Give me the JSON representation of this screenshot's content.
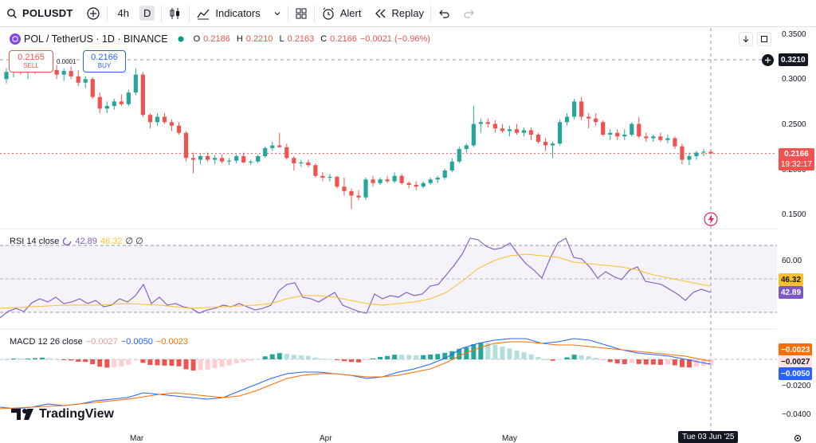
{
  "toolbar": {
    "symbol": "POLUSDT",
    "interval": "4h",
    "interval_active": "D",
    "indicators_label": "Indicators",
    "alert_label": "Alert",
    "replay_label": "Replay"
  },
  "legend": {
    "pair": "POL / TetherUS · 1D · BINANCE",
    "open_label": "O",
    "open": "0.2186",
    "high_label": "H",
    "high": "0.2210",
    "low_label": "L",
    "low": "0.2163",
    "close_label": "C",
    "close": "0.2166",
    "change": "−0.0021 (−0.96%)"
  },
  "trade": {
    "sell_price": "0.2165",
    "sell_label": "SELL",
    "spread": "0.0001",
    "buy_price": "0.2166",
    "buy_label": "BUY"
  },
  "price_axis": {
    "labels": [
      "0.3500",
      "0.3000",
      "0.2500",
      "0.2000",
      "0.1500"
    ],
    "crosshair_value": "0.3210",
    "last_price": "0.2166",
    "countdown": "19:32:17"
  },
  "rsi": {
    "title": "RSI 14 close",
    "value": "42.89",
    "ma": "46.32",
    "extra": "∅ ∅",
    "axis_label": "60.00",
    "ma_tag": "46.32",
    "value_tag": "42.89"
  },
  "macd": {
    "title": "MACD 12 26 close",
    "hist": "−0.0027",
    "macd": "−0.0050",
    "signal": "−0.0023",
    "axis_labels": [
      "−0.0200",
      "−0.0400"
    ],
    "tag_signal": "−0.0023",
    "tag_hist": "−0.0027",
    "tag_macd": "−0.0050"
  },
  "time_axis": {
    "labels": [
      "Mar",
      "Apr",
      "May"
    ],
    "crosshair_date": "Tue 03 Jun '25"
  },
  "watermark": "TradingView",
  "colors": {
    "up": "#26a69a",
    "down": "#ef5350",
    "rsi_line": "#7e57c2",
    "rsi_ma": "#fbc02d",
    "macd_line": "#2962ff",
    "signal_line": "#ff6d00"
  },
  "icons": {
    "search": "search-icon",
    "add": "plus-circle-icon",
    "candles": "candlestick-icon",
    "indicators": "indicators-icon",
    "layout": "grid-icon",
    "alert": "alarm-clock-icon",
    "replay": "replay-icon",
    "undo": "undo-icon",
    "redo": "redo-icon"
  },
  "chart_data": {
    "type": "candlestick",
    "symbol": "POL / TetherUS",
    "timeframe": "1D",
    "ylim": [
      0.13,
      0.355
    ],
    "candles": [
      [
        0.3,
        0.312,
        0.295,
        0.308
      ],
      [
        0.308,
        0.318,
        0.302,
        0.315
      ],
      [
        0.315,
        0.32,
        0.305,
        0.31
      ],
      [
        0.31,
        0.315,
        0.3,
        0.312
      ],
      [
        0.312,
        0.318,
        0.306,
        0.316
      ],
      [
        0.316,
        0.322,
        0.312,
        0.318
      ],
      [
        0.318,
        0.322,
        0.308,
        0.31
      ],
      [
        0.31,
        0.316,
        0.3,
        0.305
      ],
      [
        0.305,
        0.312,
        0.298,
        0.309
      ],
      [
        0.309,
        0.314,
        0.3,
        0.303
      ],
      [
        0.303,
        0.31,
        0.292,
        0.296
      ],
      [
        0.296,
        0.303,
        0.29,
        0.3
      ],
      [
        0.3,
        0.302,
        0.278,
        0.28
      ],
      [
        0.28,
        0.285,
        0.262,
        0.267
      ],
      [
        0.267,
        0.275,
        0.262,
        0.27
      ],
      [
        0.27,
        0.278,
        0.266,
        0.275
      ],
      [
        0.275,
        0.283,
        0.27,
        0.272
      ],
      [
        0.272,
        0.288,
        0.27,
        0.285
      ],
      [
        0.285,
        0.312,
        0.282,
        0.305
      ],
      [
        0.305,
        0.308,
        0.258,
        0.26
      ],
      [
        0.26,
        0.262,
        0.245,
        0.252
      ],
      [
        0.252,
        0.262,
        0.248,
        0.258
      ],
      [
        0.258,
        0.262,
        0.25,
        0.252
      ],
      [
        0.252,
        0.255,
        0.242,
        0.248
      ],
      [
        0.248,
        0.252,
        0.238,
        0.24
      ],
      [
        0.24,
        0.242,
        0.208,
        0.212
      ],
      [
        0.212,
        0.218,
        0.195,
        0.21
      ],
      [
        0.21,
        0.216,
        0.205,
        0.214
      ],
      [
        0.214,
        0.218,
        0.208,
        0.21
      ],
      [
        0.21,
        0.215,
        0.205,
        0.212
      ],
      [
        0.212,
        0.216,
        0.206,
        0.208
      ],
      [
        0.208,
        0.212,
        0.204,
        0.209
      ],
      [
        0.209,
        0.216,
        0.206,
        0.214
      ],
      [
        0.214,
        0.218,
        0.206,
        0.207
      ],
      [
        0.207,
        0.21,
        0.204,
        0.208
      ],
      [
        0.208,
        0.216,
        0.206,
        0.214
      ],
      [
        0.214,
        0.225,
        0.212,
        0.223
      ],
      [
        0.223,
        0.23,
        0.22,
        0.226
      ],
      [
        0.226,
        0.24,
        0.224,
        0.224
      ],
      [
        0.224,
        0.228,
        0.21,
        0.212
      ],
      [
        0.212,
        0.214,
        0.198,
        0.206
      ],
      [
        0.206,
        0.21,
        0.202,
        0.207
      ],
      [
        0.207,
        0.21,
        0.202,
        0.204
      ],
      [
        0.204,
        0.206,
        0.19,
        0.192
      ],
      [
        0.192,
        0.196,
        0.186,
        0.19
      ],
      [
        0.19,
        0.194,
        0.186,
        0.191
      ],
      [
        0.191,
        0.192,
        0.178,
        0.18
      ],
      [
        0.18,
        0.19,
        0.17,
        0.175
      ],
      [
        0.175,
        0.178,
        0.155,
        0.17
      ],
      [
        0.17,
        0.176,
        0.165,
        0.168
      ],
      [
        0.168,
        0.19,
        0.165,
        0.188
      ],
      [
        0.188,
        0.192,
        0.18,
        0.184
      ],
      [
        0.184,
        0.19,
        0.182,
        0.188
      ],
      [
        0.188,
        0.192,
        0.184,
        0.186
      ],
      [
        0.186,
        0.196,
        0.184,
        0.192
      ],
      [
        0.192,
        0.194,
        0.182,
        0.184
      ],
      [
        0.184,
        0.186,
        0.178,
        0.182
      ],
      [
        0.182,
        0.186,
        0.176,
        0.18
      ],
      [
        0.18,
        0.186,
        0.178,
        0.184
      ],
      [
        0.184,
        0.19,
        0.182,
        0.188
      ],
      [
        0.188,
        0.192,
        0.184,
        0.19
      ],
      [
        0.19,
        0.2,
        0.188,
        0.198
      ],
      [
        0.198,
        0.212,
        0.196,
        0.208
      ],
      [
        0.208,
        0.225,
        0.206,
        0.222
      ],
      [
        0.222,
        0.228,
        0.218,
        0.226
      ],
      [
        0.226,
        0.27,
        0.224,
        0.25
      ],
      [
        0.25,
        0.256,
        0.24,
        0.252
      ],
      [
        0.252,
        0.256,
        0.246,
        0.25
      ],
      [
        0.25,
        0.254,
        0.24,
        0.245
      ],
      [
        0.245,
        0.25,
        0.24,
        0.242
      ],
      [
        0.242,
        0.248,
        0.236,
        0.244
      ],
      [
        0.244,
        0.25,
        0.238,
        0.24
      ],
      [
        0.24,
        0.246,
        0.236,
        0.243
      ],
      [
        0.243,
        0.246,
        0.232,
        0.238
      ],
      [
        0.238,
        0.24,
        0.228,
        0.23
      ],
      [
        0.23,
        0.234,
        0.22,
        0.226
      ],
      [
        0.226,
        0.23,
        0.212,
        0.228
      ],
      [
        0.228,
        0.255,
        0.226,
        0.252
      ],
      [
        0.252,
        0.262,
        0.248,
        0.258
      ],
      [
        0.258,
        0.278,
        0.255,
        0.275
      ],
      [
        0.275,
        0.28,
        0.254,
        0.258
      ],
      [
        0.258,
        0.262,
        0.245,
        0.256
      ],
      [
        0.256,
        0.262,
        0.248,
        0.252
      ],
      [
        0.252,
        0.254,
        0.236,
        0.238
      ],
      [
        0.238,
        0.244,
        0.232,
        0.24
      ],
      [
        0.24,
        0.244,
        0.232,
        0.236
      ],
      [
        0.236,
        0.244,
        0.232,
        0.238
      ],
      [
        0.238,
        0.252,
        0.236,
        0.25
      ],
      [
        0.25,
        0.258,
        0.234,
        0.236
      ],
      [
        0.236,
        0.24,
        0.23,
        0.234
      ],
      [
        0.234,
        0.238,
        0.23,
        0.236
      ],
      [
        0.236,
        0.24,
        0.23,
        0.232
      ],
      [
        0.232,
        0.238,
        0.228,
        0.234
      ],
      [
        0.234,
        0.236,
        0.222,
        0.225
      ],
      [
        0.225,
        0.228,
        0.205,
        0.21
      ],
      [
        0.21,
        0.218,
        0.204,
        0.214
      ],
      [
        0.214,
        0.22,
        0.21,
        0.218
      ],
      [
        0.218,
        0.222,
        0.214,
        0.219
      ],
      [
        0.219,
        0.221,
        0.216,
        0.217
      ]
    ]
  }
}
